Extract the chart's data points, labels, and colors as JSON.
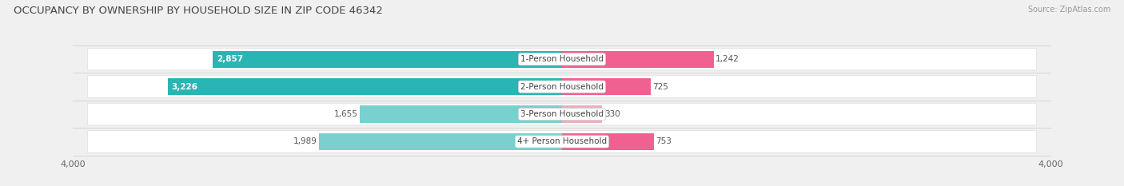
{
  "title": "OCCUPANCY BY OWNERSHIP BY HOUSEHOLD SIZE IN ZIP CODE 46342",
  "source": "Source: ZipAtlas.com",
  "categories": [
    "1-Person Household",
    "2-Person Household",
    "3-Person Household",
    "4+ Person Household"
  ],
  "owner_values": [
    2857,
    3226,
    1655,
    1989
  ],
  "renter_values": [
    1242,
    725,
    330,
    753
  ],
  "owner_color_dark": "#2ab5b5",
  "owner_color_light": "#7acfcf",
  "renter_color_dark": "#f06090",
  "renter_color_light": "#f5aac0",
  "axis_max": 4000,
  "background_color": "#f0f0f0",
  "row_bg_color": "#ffffff",
  "title_fontsize": 9.5,
  "label_fontsize": 7.5,
  "value_fontsize": 7.5,
  "tick_fontsize": 8,
  "source_fontsize": 7,
  "owner_dark_threshold": 2000,
  "renter_dark_threshold": 700
}
